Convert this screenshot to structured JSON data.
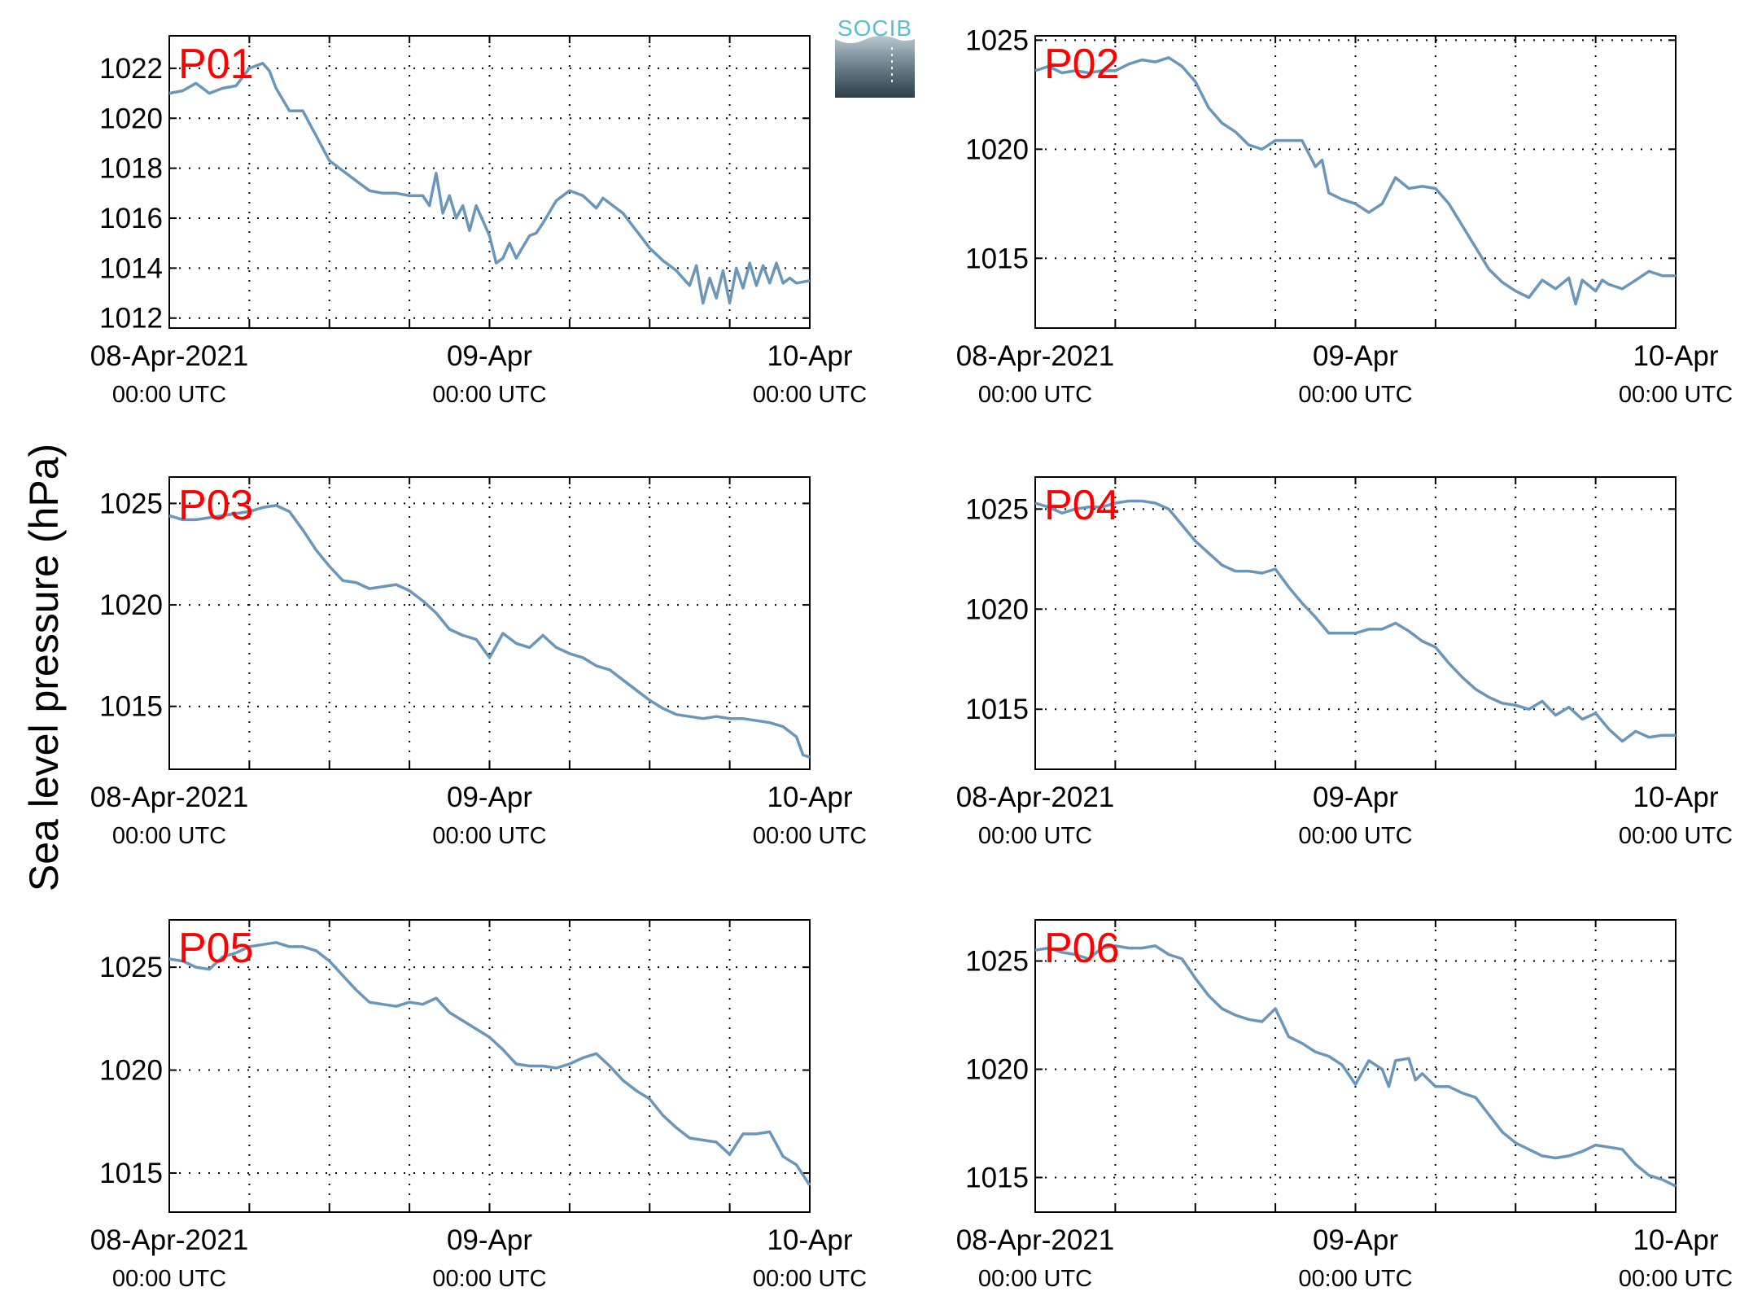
{
  "ylabel": "Sea level pressure (hPa)",
  "logo": {
    "text": "SOCIB",
    "color": "#5bbdd3"
  },
  "colors": {
    "series": "#6a96ba",
    "label": "#ff0000",
    "grid": "#000000"
  },
  "chart_data": [
    {
      "type": "line",
      "label": "P01",
      "xlim": [
        0,
        48
      ],
      "ylim": [
        1011.6,
        1023.3
      ],
      "yticks": [
        1012,
        1014,
        1016,
        1018,
        1020,
        1022
      ],
      "xticks": [
        {
          "x": 0,
          "label": "08-Apr-2021",
          "sub": "00:00 UTC"
        },
        {
          "x": 24,
          "label": "09-Apr",
          "sub": "00:00 UTC"
        },
        {
          "x": 48,
          "label": "10-Apr",
          "sub": "00:00 UTC"
        }
      ],
      "grid_hours": [
        6,
        12,
        18,
        24,
        30,
        36,
        42
      ],
      "x": [
        0,
        1,
        2,
        2.5,
        3,
        4,
        5,
        6,
        7,
        7.5,
        8,
        9,
        10,
        11,
        12,
        13,
        14,
        15,
        16,
        17,
        18,
        19,
        19.5,
        20,
        20.5,
        21,
        21.5,
        22,
        22.5,
        23,
        23.5,
        24,
        24.5,
        25,
        25.5,
        26,
        27,
        27.5,
        28,
        29,
        30,
        31,
        32,
        32.5,
        33,
        34,
        35,
        36,
        37,
        38,
        39,
        39.5,
        40,
        40.5,
        41,
        41.5,
        42,
        42.5,
        43,
        43.5,
        44,
        44.5,
        45,
        45.5,
        46,
        46.5,
        47,
        48
      ],
      "y": [
        1021.0,
        1021.1,
        1021.4,
        1021.2,
        1021.0,
        1021.2,
        1021.3,
        1022.0,
        1022.2,
        1021.9,
        1021.2,
        1020.3,
        1020.3,
        1019.3,
        1018.3,
        1017.9,
        1017.5,
        1017.1,
        1017.0,
        1017.0,
        1016.9,
        1016.9,
        1016.5,
        1017.8,
        1016.2,
        1016.9,
        1016.0,
        1016.5,
        1015.5,
        1016.5,
        1015.9,
        1015.3,
        1014.2,
        1014.4,
        1015.0,
        1014.4,
        1015.3,
        1015.4,
        1015.8,
        1016.7,
        1017.1,
        1016.9,
        1016.4,
        1016.8,
        1016.6,
        1016.2,
        1015.5,
        1014.8,
        1014.3,
        1013.9,
        1013.3,
        1014.1,
        1012.6,
        1013.6,
        1012.8,
        1013.9,
        1012.6,
        1014.0,
        1013.2,
        1014.2,
        1013.3,
        1014.1,
        1013.4,
        1014.2,
        1013.4,
        1013.6,
        1013.4,
        1013.5
      ]
    },
    {
      "type": "line",
      "label": "P02",
      "xlim": [
        0,
        48
      ],
      "ylim": [
        1011.8,
        1025.2
      ],
      "yticks": [
        1015,
        1020,
        1025
      ],
      "xticks": [
        {
          "x": 0,
          "label": "08-Apr-2021",
          "sub": "00:00 UTC"
        },
        {
          "x": 24,
          "label": "09-Apr",
          "sub": "00:00 UTC"
        },
        {
          "x": 48,
          "label": "10-Apr",
          "sub": "00:00 UTC"
        }
      ],
      "grid_hours": [
        6,
        12,
        18,
        24,
        30,
        36,
        42
      ],
      "x": [
        0,
        1,
        2,
        3,
        4,
        5,
        6,
        7,
        8,
        9,
        10,
        11,
        12,
        13,
        14,
        15,
        16,
        17,
        18,
        19,
        20,
        21,
        21.5,
        22,
        23,
        24,
        25,
        26,
        27,
        28,
        29,
        30,
        31,
        32,
        33,
        34,
        35,
        36,
        37,
        38,
        39,
        40,
        40.5,
        41,
        42,
        42.5,
        43,
        44,
        45,
        46,
        47,
        48
      ],
      "y": [
        1023.6,
        1023.8,
        1023.5,
        1023.6,
        1023.5,
        1023.6,
        1023.6,
        1023.9,
        1024.1,
        1024.0,
        1024.2,
        1023.8,
        1023.1,
        1021.9,
        1021.2,
        1020.8,
        1020.2,
        1020.0,
        1020.4,
        1020.4,
        1020.4,
        1019.2,
        1019.5,
        1018.0,
        1017.7,
        1017.5,
        1017.1,
        1017.5,
        1018.7,
        1018.2,
        1018.3,
        1018.2,
        1017.5,
        1016.5,
        1015.5,
        1014.5,
        1013.9,
        1013.5,
        1013.2,
        1014.0,
        1013.6,
        1014.1,
        1012.9,
        1014.0,
        1013.5,
        1014.0,
        1013.8,
        1013.6,
        1014.0,
        1014.4,
        1014.2,
        1014.2
      ]
    },
    {
      "type": "line",
      "label": "P03",
      "xlim": [
        0,
        48
      ],
      "ylim": [
        1011.9,
        1026.3
      ],
      "yticks": [
        1015,
        1020,
        1025
      ],
      "xticks": [
        {
          "x": 0,
          "label": "08-Apr-2021",
          "sub": "00:00 UTC"
        },
        {
          "x": 24,
          "label": "09-Apr",
          "sub": "00:00 UTC"
        },
        {
          "x": 48,
          "label": "10-Apr",
          "sub": "00:00 UTC"
        }
      ],
      "grid_hours": [
        6,
        12,
        18,
        24,
        30,
        36,
        42
      ],
      "x": [
        0,
        1,
        2,
        3,
        4,
        5,
        6,
        7,
        8,
        9,
        10,
        11,
        12,
        13,
        14,
        15,
        16,
        17,
        18,
        19,
        20,
        21,
        22,
        23,
        24,
        25,
        26,
        27,
        28,
        29,
        30,
        31,
        32,
        33,
        34,
        35,
        36,
        37,
        38,
        39,
        40,
        41,
        42,
        43,
        44,
        45,
        46,
        47,
        47.5,
        48
      ],
      "y": [
        1024.4,
        1024.2,
        1024.2,
        1024.3,
        1024.4,
        1024.5,
        1024.6,
        1024.8,
        1024.9,
        1024.6,
        1023.7,
        1022.7,
        1021.9,
        1021.2,
        1021.1,
        1020.8,
        1020.9,
        1021.0,
        1020.7,
        1020.2,
        1019.6,
        1018.8,
        1018.5,
        1018.3,
        1017.4,
        1018.6,
        1018.1,
        1017.9,
        1018.5,
        1017.9,
        1017.6,
        1017.4,
        1017.0,
        1016.8,
        1016.3,
        1015.8,
        1015.3,
        1014.9,
        1014.6,
        1014.5,
        1014.4,
        1014.5,
        1014.4,
        1014.4,
        1014.3,
        1014.2,
        1014.0,
        1013.5,
        1012.6,
        1012.5
      ]
    },
    {
      "type": "line",
      "label": "P04",
      "xlim": [
        0,
        48
      ],
      "ylim": [
        1012.0,
        1026.6
      ],
      "yticks": [
        1015,
        1020,
        1025
      ],
      "xticks": [
        {
          "x": 0,
          "label": "08-Apr-2021",
          "sub": "00:00 UTC"
        },
        {
          "x": 24,
          "label": "09-Apr",
          "sub": "00:00 UTC"
        },
        {
          "x": 48,
          "label": "10-Apr",
          "sub": "00:00 UTC"
        }
      ],
      "grid_hours": [
        6,
        12,
        18,
        24,
        30,
        36,
        42
      ],
      "x": [
        0,
        1,
        2,
        3,
        4,
        5,
        6,
        7,
        8,
        9,
        10,
        11,
        12,
        13,
        14,
        15,
        16,
        17,
        18,
        19,
        20,
        21,
        22,
        23,
        24,
        25,
        26,
        27,
        28,
        29,
        30,
        31,
        32,
        33,
        34,
        35,
        36,
        37,
        38,
        39,
        40,
        41,
        42,
        43,
        44,
        45,
        46,
        47,
        48
      ],
      "y": [
        1025.3,
        1025.1,
        1024.8,
        1025.0,
        1025.1,
        1025.1,
        1025.3,
        1025.4,
        1025.4,
        1025.3,
        1025.0,
        1024.2,
        1023.4,
        1022.8,
        1022.2,
        1021.9,
        1021.9,
        1021.8,
        1022.0,
        1021.1,
        1020.3,
        1019.6,
        1018.8,
        1018.8,
        1018.8,
        1019.0,
        1019.0,
        1019.3,
        1018.9,
        1018.4,
        1018.1,
        1017.3,
        1016.6,
        1016.0,
        1015.6,
        1015.3,
        1015.2,
        1015.0,
        1015.4,
        1014.7,
        1015.1,
        1014.5,
        1014.8,
        1014.0,
        1013.4,
        1013.9,
        1013.6,
        1013.7,
        1013.7
      ]
    },
    {
      "type": "line",
      "label": "P05",
      "xlim": [
        0,
        48
      ],
      "ylim": [
        1013.1,
        1027.3
      ],
      "yticks": [
        1015,
        1020,
        1025
      ],
      "xticks": [
        {
          "x": 0,
          "label": "08-Apr-2021",
          "sub": "00:00 UTC"
        },
        {
          "x": 24,
          "label": "09-Apr",
          "sub": "00:00 UTC"
        },
        {
          "x": 48,
          "label": "10-Apr",
          "sub": "00:00 UTC"
        }
      ],
      "grid_hours": [
        6,
        12,
        18,
        24,
        30,
        36,
        42
      ],
      "x": [
        0,
        1,
        2,
        3,
        4,
        5,
        6,
        7,
        8,
        9,
        10,
        11,
        12,
        13,
        14,
        15,
        16,
        17,
        18,
        19,
        20,
        21,
        22,
        23,
        24,
        25,
        26,
        27,
        28,
        29,
        30,
        31,
        32,
        33,
        34,
        35,
        36,
        37,
        38,
        39,
        40,
        41,
        42,
        43,
        44,
        45,
        46,
        47,
        48
      ],
      "y": [
        1025.4,
        1025.3,
        1025.0,
        1024.9,
        1025.5,
        1025.7,
        1026.0,
        1026.1,
        1026.2,
        1026.0,
        1026.0,
        1025.8,
        1025.3,
        1024.6,
        1023.9,
        1023.3,
        1023.2,
        1023.1,
        1023.3,
        1023.2,
        1023.5,
        1022.8,
        1022.4,
        1022.0,
        1021.6,
        1021.0,
        1020.3,
        1020.2,
        1020.2,
        1020.1,
        1020.3,
        1020.6,
        1020.8,
        1020.2,
        1019.5,
        1019.0,
        1018.6,
        1017.8,
        1017.2,
        1016.7,
        1016.6,
        1016.5,
        1015.9,
        1016.9,
        1016.9,
        1017.0,
        1015.8,
        1015.4,
        1014.4
      ]
    },
    {
      "type": "line",
      "label": "P06",
      "xlim": [
        0,
        48
      ],
      "ylim": [
        1013.4,
        1026.9
      ],
      "yticks": [
        1015,
        1020,
        1025
      ],
      "xticks": [
        {
          "x": 0,
          "label": "08-Apr-2021",
          "sub": "00:00 UTC"
        },
        {
          "x": 24,
          "label": "09-Apr",
          "sub": "00:00 UTC"
        },
        {
          "x": 48,
          "label": "10-Apr",
          "sub": "00:00 UTC"
        }
      ],
      "grid_hours": [
        6,
        12,
        18,
        24,
        30,
        36,
        42
      ],
      "x": [
        0,
        1,
        2,
        3,
        4,
        5,
        6,
        7,
        8,
        9,
        10,
        11,
        12,
        13,
        14,
        15,
        16,
        17,
        18,
        19,
        20,
        21,
        22,
        23,
        24,
        25,
        26,
        26.5,
        27,
        28,
        28.5,
        29,
        30,
        31,
        32,
        33,
        34,
        35,
        36,
        37,
        38,
        39,
        40,
        41,
        42,
        43,
        44,
        45,
        46,
        47,
        48
      ],
      "y": [
        1025.5,
        1025.6,
        1025.4,
        1025.3,
        1025.1,
        1025.6,
        1025.7,
        1025.6,
        1025.6,
        1025.7,
        1025.3,
        1025.1,
        1024.2,
        1023.4,
        1022.8,
        1022.5,
        1022.3,
        1022.2,
        1022.8,
        1021.5,
        1021.2,
        1020.8,
        1020.6,
        1020.2,
        1019.3,
        1020.4,
        1020.0,
        1019.2,
        1020.4,
        1020.5,
        1019.5,
        1019.8,
        1019.2,
        1019.2,
        1018.9,
        1018.7,
        1017.9,
        1017.1,
        1016.6,
        1016.3,
        1016.0,
        1015.9,
        1016.0,
        1016.2,
        1016.5,
        1016.4,
        1016.3,
        1015.6,
        1015.1,
        1014.9,
        1014.6
      ]
    }
  ]
}
